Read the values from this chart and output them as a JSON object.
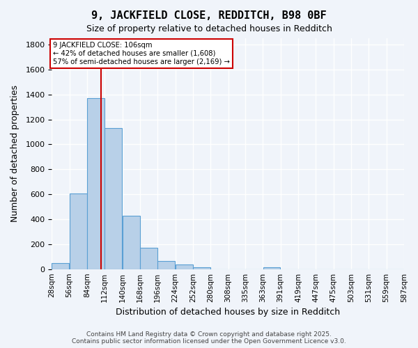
{
  "title": "9, JACKFIELD CLOSE, REDDITCH, B98 0BF",
  "subtitle": "Size of property relative to detached houses in Redditch",
  "xlabel": "Distribution of detached houses by size in Redditch",
  "ylabel": "Number of detached properties",
  "bin_edges": [
    28,
    56,
    84,
    112,
    140,
    168,
    196,
    224,
    252,
    280,
    308,
    335,
    363,
    391,
    419,
    447,
    475,
    503,
    531,
    559,
    587
  ],
  "bin_labels": [
    "28sqm",
    "56sqm",
    "84sqm",
    "112sqm",
    "140sqm",
    "168sqm",
    "196sqm",
    "224sqm",
    "252sqm",
    "280sqm",
    "308sqm",
    "335sqm",
    "363sqm",
    "391sqm",
    "419sqm",
    "447sqm",
    "475sqm",
    "503sqm",
    "531sqm",
    "559sqm",
    "587sqm"
  ],
  "bar_heights": [
    50,
    605,
    1370,
    1130,
    425,
    170,
    65,
    40,
    15,
    0,
    0,
    0,
    15,
    0,
    0,
    0,
    0,
    0,
    0,
    0
  ],
  "bar_color": "#b8d0e8",
  "bar_edge_color": "#5a9fd4",
  "ylim": [
    0,
    1850
  ],
  "yticks": [
    0,
    200,
    400,
    600,
    800,
    1000,
    1200,
    1400,
    1600,
    1800
  ],
  "property_line_x": 106,
  "property_line_color": "#cc0000",
  "annotation_text": "9 JACKFIELD CLOSE: 106sqm\n← 42% of detached houses are smaller (1,608)\n57% of semi-detached houses are larger (2,169) →",
  "annotation_box_color": "#ffffff",
  "annotation_box_edge": "#cc0000",
  "footer_text": "Contains HM Land Registry data © Crown copyright and database right 2025.\nContains public sector information licensed under the Open Government Licence v3.0.",
  "background_color": "#f0f4fa",
  "grid_color": "#ffffff"
}
